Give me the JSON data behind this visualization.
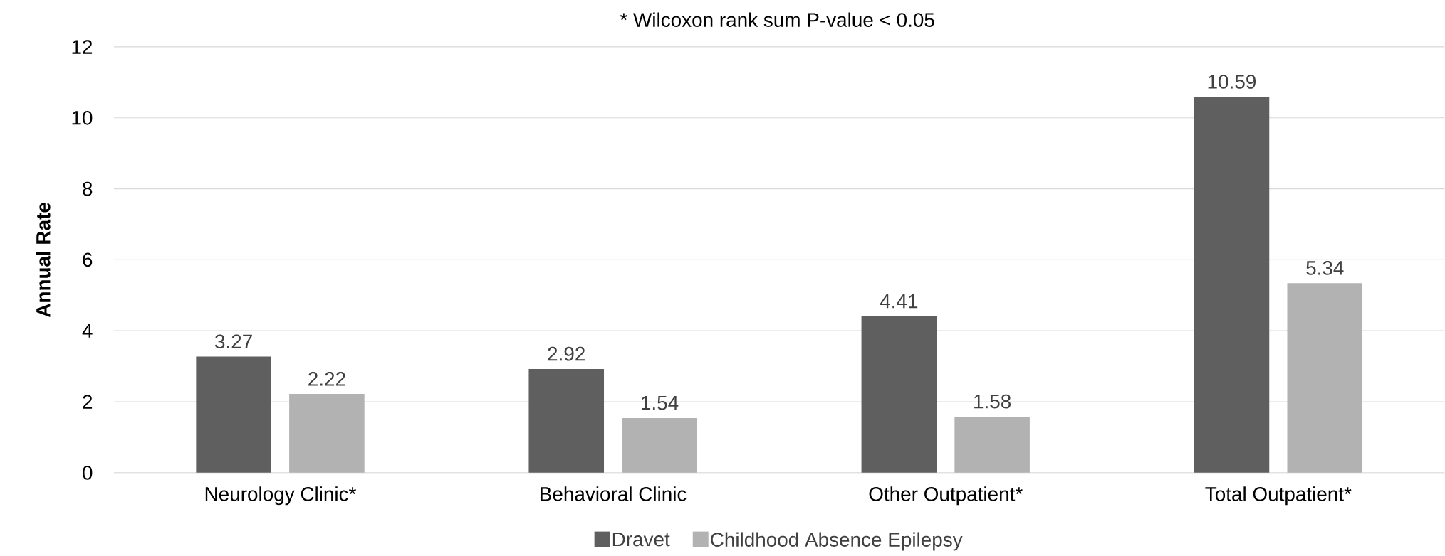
{
  "chart_data": {
    "type": "bar",
    "title": "* Wilcoxon rank sum P-value < 0.05",
    "ylabel": "Annual Rate",
    "categories": [
      "Neurology Clinic*",
      "Behavioral Clinic",
      "Other Outpatient*",
      "Total Outpatient*"
    ],
    "series": [
      {
        "name": "Dravet",
        "color": "#5f5f5f",
        "values": [
          3.27,
          2.92,
          4.41,
          10.59
        ]
      },
      {
        "name": "Childhood Absence Epilepsy",
        "color": "#b2b2b2",
        "values": [
          2.22,
          1.54,
          1.58,
          5.34
        ]
      }
    ],
    "ylim": [
      0,
      12
    ],
    "yticks": [
      0,
      2,
      4,
      6,
      8,
      10,
      12
    ],
    "grid": "y",
    "legend": "bottom",
    "data_labels": true
  }
}
